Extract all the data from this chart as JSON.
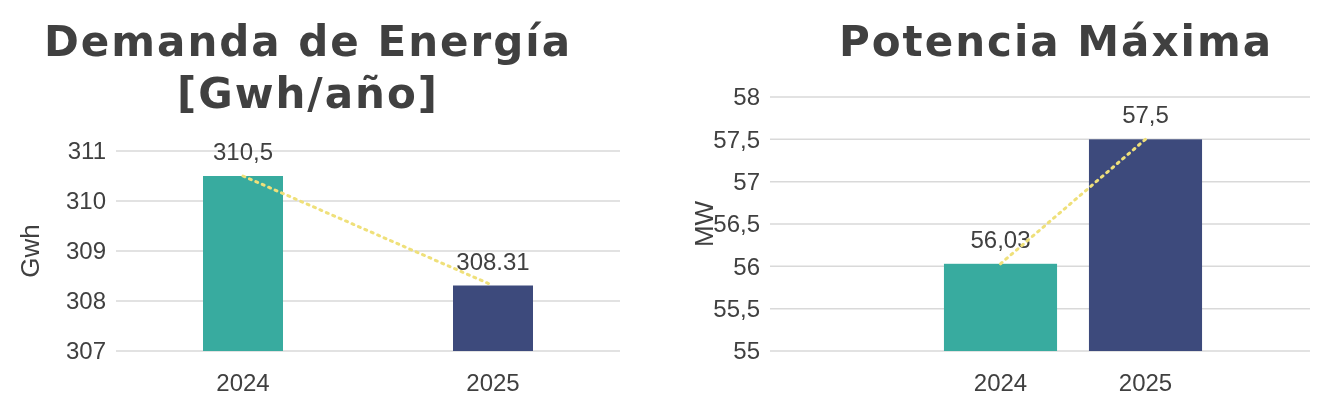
{
  "chart_data": [
    {
      "type": "bar",
      "title": "Demanda de Energía [Gwh/año]",
      "ylabel": "Gwh",
      "categories": [
        "2024",
        "2025"
      ],
      "ylim": [
        307,
        311
      ],
      "yticks": [
        307,
        308,
        309,
        310,
        311
      ],
      "grid": "y",
      "series": [
        {
          "values": [
            310.5,
            308.31
          ],
          "colors": [
            "#38ab9f",
            "#3d4a7c"
          ],
          "value_labels": [
            "310,5",
            "308.31"
          ]
        },
        {
          "type": "line",
          "values": [
            310.5,
            308.31
          ],
          "color": "#efe07a",
          "line_style": "dotted",
          "marker": "none"
        }
      ]
    },
    {
      "type": "bar",
      "title": "Potencia Máxima",
      "ylabel": "MW",
      "categories": [
        "2024",
        "2025"
      ],
      "ylim": [
        55,
        58
      ],
      "yticks": [
        55,
        {
          "value": 55.5,
          "label": "55,5"
        },
        56,
        {
          "value": 56.5,
          "label": "56,5"
        },
        57,
        {
          "value": 57.5,
          "label": "57,5"
        },
        58
      ],
      "grid": "y",
      "series": [
        {
          "values": [
            56.03,
            57.5
          ],
          "colors": [
            "#38ab9f",
            "#3d4a7c"
          ],
          "value_labels": [
            "56,03",
            "57,5"
          ]
        },
        {
          "type": "line",
          "values": [
            56.03,
            57.5
          ],
          "color": "#efe07a",
          "line_style": "dotted",
          "marker": "none"
        }
      ]
    }
  ]
}
